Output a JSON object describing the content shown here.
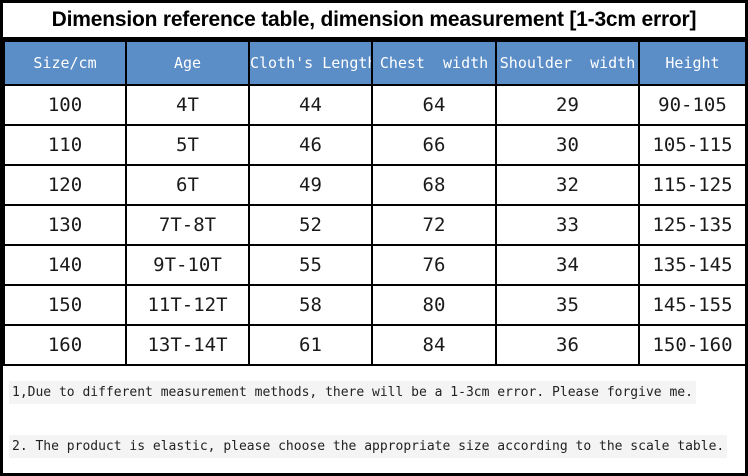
{
  "colors": {
    "header_bg": "#5b8dc7",
    "header_text": "#ffffff",
    "border_color": "#000000",
    "note_highlight": "#f4f4f4"
  },
  "title": "Dimension reference table, dimension measurement [1-3cm error]",
  "table": {
    "headers": [
      "Size/cm",
      "Age",
      "Cloth's Length",
      "Chest  width",
      "Shoulder  width",
      "Height"
    ],
    "rows": [
      [
        "100",
        "4T",
        "44",
        "64",
        "29",
        "90-105"
      ],
      [
        "110",
        "5T",
        "46",
        "66",
        "30",
        "105-115"
      ],
      [
        "120",
        "6T",
        "49",
        "68",
        "32",
        "115-125"
      ],
      [
        "130",
        "7T-8T",
        "52",
        "72",
        "33",
        "125-135"
      ],
      [
        "140",
        "9T-10T",
        "55",
        "76",
        "34",
        "135-145"
      ],
      [
        "150",
        "11T-12T",
        "58",
        "80",
        "35",
        "145-155"
      ],
      [
        "160",
        "13T-14T",
        "61",
        "84",
        "36",
        "150-160"
      ]
    ]
  },
  "notes": [
    "1,Due to different measurement methods, there will be a 1-3cm error. Please forgive me.",
    "2. The product is elastic, please choose the appropriate size according to the scale table."
  ]
}
